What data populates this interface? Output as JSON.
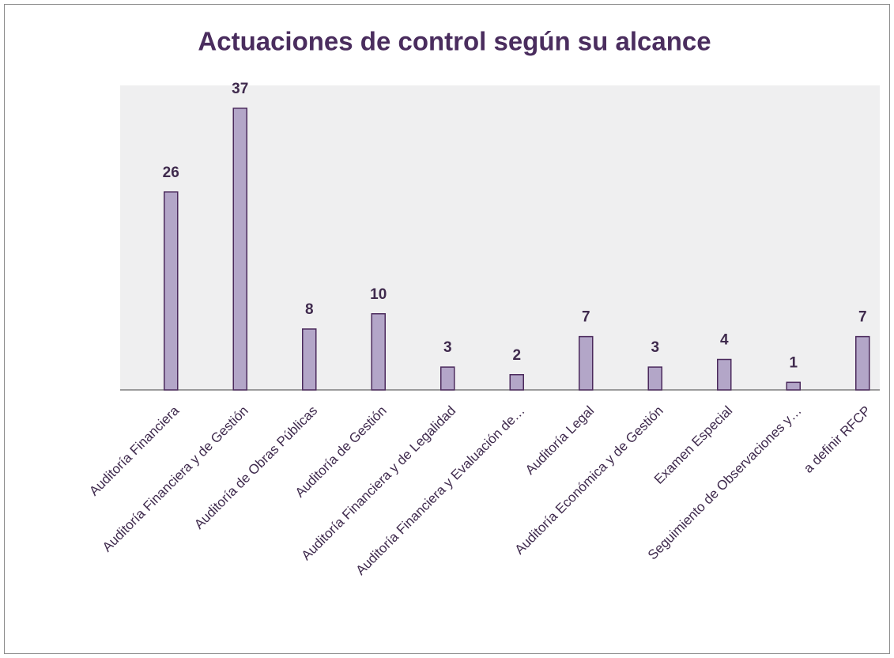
{
  "chart_data": {
    "type": "bar",
    "title": "Actuaciones de control según su alcance",
    "categories": [
      "Auditoría Financiera",
      "Auditoría Financiera y de Gestión",
      "Auditoría de Obras Públicas",
      "Auditoría de Gestión",
      "Auditoría Financiera y de Legalidad",
      "Auditoría Financiera y Evaluación de…",
      "Auditoría Legal",
      "Auditoría Económica y de Gestión",
      "Examen Especial",
      "Seguimiento de Observaciones y…",
      "a definir RFCP"
    ],
    "values": [
      26,
      37,
      8,
      10,
      3,
      2,
      7,
      3,
      4,
      1,
      7
    ],
    "color": "#b3a6c8",
    "ylim": [
      0,
      40
    ]
  }
}
